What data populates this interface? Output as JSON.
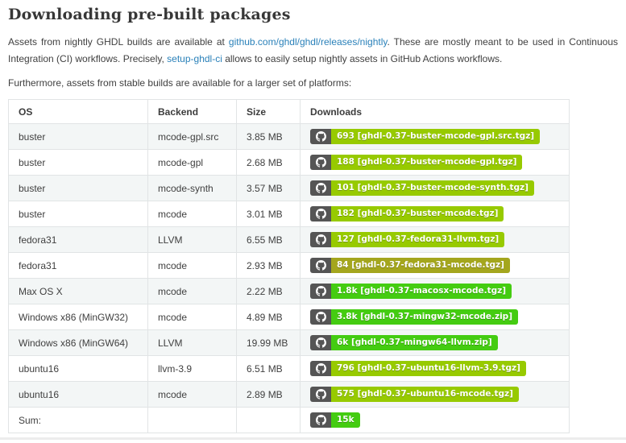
{
  "page": {
    "title": "Downloading pre-built packages",
    "intro_segments": [
      {
        "type": "text",
        "value": "Assets from nightly GHDL builds are available at "
      },
      {
        "type": "link",
        "value": "github.com/ghdl/ghdl/releases/nightly"
      },
      {
        "type": "text",
        "value": ". These are mostly meant to be used in Continuous Integration (CI) workflows. Precisely, "
      },
      {
        "type": "link",
        "value": "setup-ghdl-ci"
      },
      {
        "type": "text",
        "value": " allows to easily setup nightly assets in GitHub Actions workflows."
      }
    ],
    "note": "Furthermore, assets from stable builds are available for a larger set of platforms:"
  },
  "colors": {
    "link": "#2980b9",
    "badge_icon_bg": "#555555",
    "badge_text": "#ffffff",
    "brightgreen": "#44cc11",
    "green": "#97ca00",
    "yellowgreen": "#a4a61d",
    "row_stripe": "#f3f6f6",
    "table_border": "#e1e4e5"
  },
  "table": {
    "headers": [
      "OS",
      "Backend",
      "Size",
      "Downloads"
    ],
    "rows": [
      {
        "os": "buster",
        "backend": "mcode-gpl.src",
        "size": "3.85 MB",
        "badge_label": "693 [ghdl-0.37-buster-mcode-gpl.src.tgz]",
        "badge_color": "green"
      },
      {
        "os": "buster",
        "backend": "mcode-gpl",
        "size": "2.68 MB",
        "badge_label": "188 [ghdl-0.37-buster-mcode-gpl.tgz]",
        "badge_color": "green"
      },
      {
        "os": "buster",
        "backend": "mcode-synth",
        "size": "3.57 MB",
        "badge_label": "101 [ghdl-0.37-buster-mcode-synth.tgz]",
        "badge_color": "green"
      },
      {
        "os": "buster",
        "backend": "mcode",
        "size": "3.01 MB",
        "badge_label": "182 [ghdl-0.37-buster-mcode.tgz]",
        "badge_color": "green"
      },
      {
        "os": "fedora31",
        "backend": "LLVM",
        "size": "6.55 MB",
        "badge_label": "127 [ghdl-0.37-fedora31-llvm.tgz]",
        "badge_color": "green"
      },
      {
        "os": "fedora31",
        "backend": "mcode",
        "size": "2.93 MB",
        "badge_label": "84 [ghdl-0.37-fedora31-mcode.tgz]",
        "badge_color": "yellowgreen"
      },
      {
        "os": "Max OS X",
        "backend": "mcode",
        "size": "2.22 MB",
        "badge_label": "1.8k [ghdl-0.37-macosx-mcode.tgz]",
        "badge_color": "brightgreen"
      },
      {
        "os": "Windows x86 (MinGW32)",
        "backend": "mcode",
        "size": "4.89 MB",
        "badge_label": "3.8k [ghdl-0.37-mingw32-mcode.zip]",
        "badge_color": "brightgreen"
      },
      {
        "os": "Windows x86 (MinGW64)",
        "backend": "LLVM",
        "size": "19.99 MB",
        "badge_label": "6k [ghdl-0.37-mingw64-llvm.zip]",
        "badge_color": "brightgreen"
      },
      {
        "os": "ubuntu16",
        "backend": "llvm-3.9",
        "size": "6.51 MB",
        "badge_label": "796 [ghdl-0.37-ubuntu16-llvm-3.9.tgz]",
        "badge_color": "green"
      },
      {
        "os": "ubuntu16",
        "backend": "mcode",
        "size": "2.89 MB",
        "badge_label": "575 [ghdl-0.37-ubuntu16-mcode.tgz]",
        "badge_color": "green"
      },
      {
        "os": "Sum:",
        "backend": "",
        "size": "",
        "badge_label": "15k",
        "badge_color": "brightgreen"
      }
    ]
  }
}
